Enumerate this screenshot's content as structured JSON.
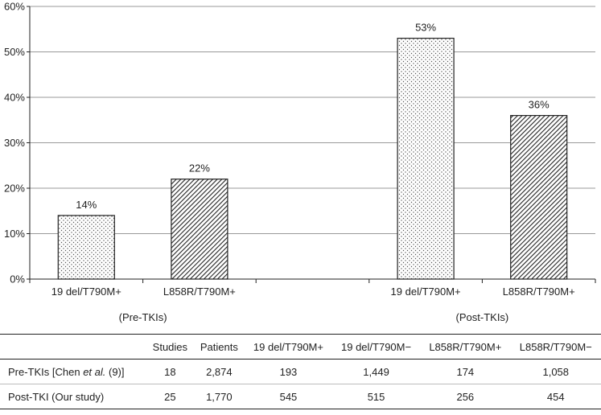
{
  "chart_data": {
    "type": "bar",
    "ylim": [
      0,
      60
    ],
    "yticks": [
      "0%",
      "10%",
      "20%",
      "30%",
      "40%",
      "50%",
      "60%"
    ],
    "grid": true,
    "categories": [
      "19 del/T790M+",
      "L858R/T790M+",
      "19 del/T790M+",
      "L858R/T790M+"
    ],
    "groups": [
      {
        "label": "(Pre-TKIs)",
        "categories": [
          0,
          1
        ]
      },
      {
        "label": "(Post-TKIs)",
        "categories": [
          2,
          3
        ]
      }
    ],
    "values": [
      14,
      22,
      53,
      36
    ],
    "data_labels": [
      "14%",
      "22%",
      "53%",
      "36%"
    ],
    "patterns": [
      "dots",
      "hatch",
      "dots",
      "hatch"
    ]
  },
  "table": {
    "headers": [
      "",
      "Studies",
      "Patients",
      "19 del/T790M+",
      "19 del/T790M−",
      "L858R/T790M+",
      "L858R/T790M−"
    ],
    "rows": [
      {
        "label_prefix": "Pre-TKIs [Chen ",
        "label_italic": "et al.",
        "label_suffix": " (9)]",
        "cells": [
          "18",
          "2,874",
          "193",
          "1,449",
          "174",
          "1,058"
        ]
      },
      {
        "label": "Post-TKI (Our study)",
        "cells": [
          "25",
          "1,770",
          "545",
          "515",
          "256",
          "454"
        ]
      }
    ]
  }
}
